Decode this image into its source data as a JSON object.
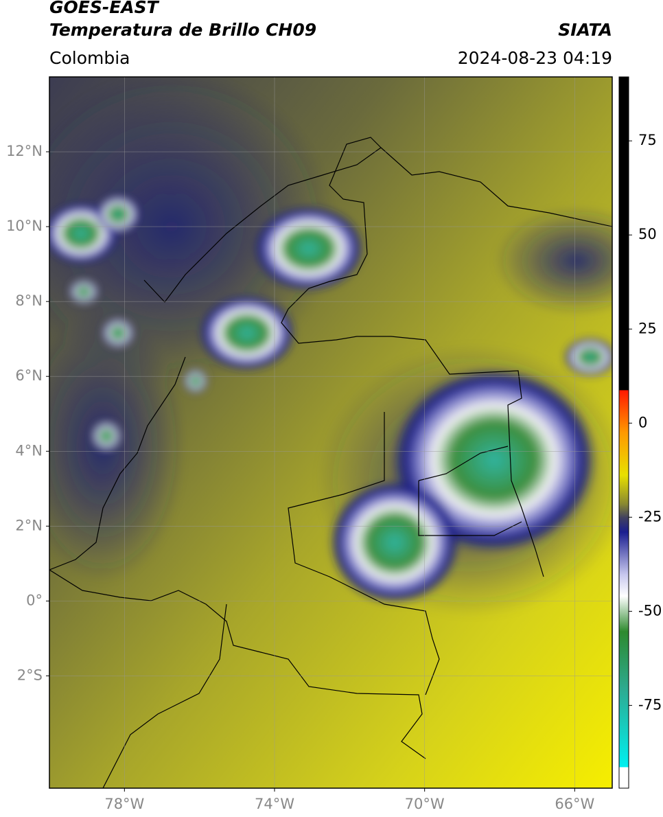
{
  "header": {
    "title": "GOES-EAST",
    "subtitle": "Temperatura de Brillo CH09",
    "region": "Colombia",
    "source": "SIATA",
    "datetime": "2024-08-23 04:19"
  },
  "map": {
    "xlim": [
      -80,
      -65
    ],
    "ylim": [
      -5,
      14
    ],
    "grid": true,
    "lat_ticks": [
      {
        "value": 12,
        "label": "12°N"
      },
      {
        "value": 10,
        "label": "10°N"
      },
      {
        "value": 8,
        "label": "8°N"
      },
      {
        "value": 6,
        "label": "6°N"
      },
      {
        "value": 4,
        "label": "4°N"
      },
      {
        "value": 2,
        "label": "2°N"
      },
      {
        "value": 0,
        "label": "0°"
      },
      {
        "value": -2,
        "label": "2°S"
      }
    ],
    "lon_ticks": [
      {
        "value": -78,
        "label": "78°W"
      },
      {
        "value": -74,
        "label": "74°W"
      },
      {
        "value": -70,
        "label": "70°W"
      },
      {
        "value": -66,
        "label": "66°W"
      }
    ]
  },
  "colorbar": {
    "lim": [
      -97,
      92
    ],
    "ticks": [
      75,
      50,
      25,
      0,
      -25,
      -50,
      -75
    ]
  }
}
